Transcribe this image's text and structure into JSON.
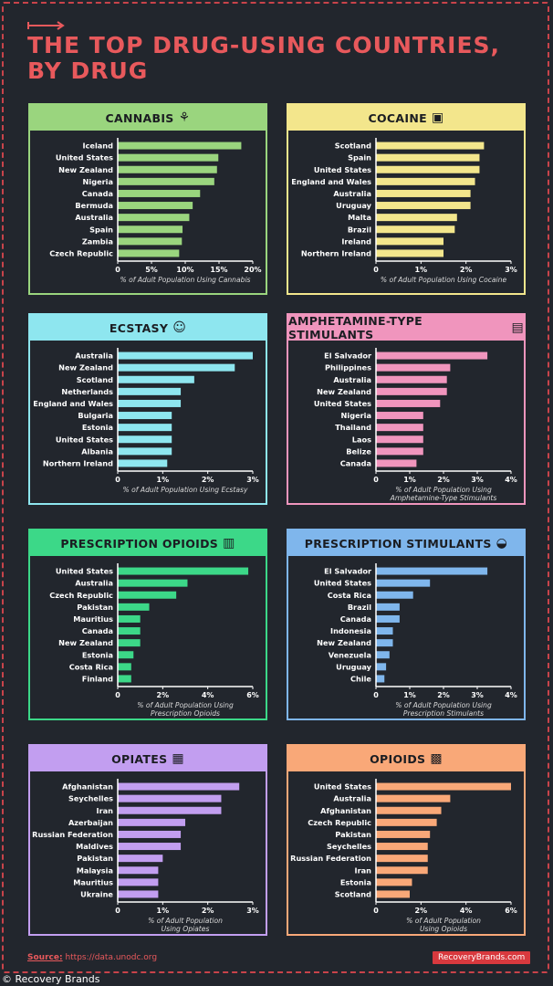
{
  "title_line1": "THE TOP DRUG-USING COUNTRIES,",
  "title_line2": "BY DRUG",
  "source_label": "Source:",
  "source_url": "https://data.unodc.org",
  "brand": "RecoveryBrands.com",
  "watermark": "© Recovery Brands",
  "chart_data": [
    {
      "type": "bar",
      "title": "CANNABIS",
      "icon": "cannabis-leaf-icon",
      "color": "#9ad57e",
      "categories": [
        "Iceland",
        "United States",
        "New Zealand",
        "Nigeria",
        "Canada",
        "Bermuda",
        "Australia",
        "Spain",
        "Zambia",
        "Czech Republic"
      ],
      "values": [
        18.3,
        14.9,
        14.7,
        14.3,
        12.2,
        11.1,
        10.6,
        9.6,
        9.5,
        9.1
      ],
      "xlim": [
        0,
        20
      ],
      "ticks": [
        "0",
        "5%",
        "10%",
        "15%",
        "20%"
      ],
      "tick_values": [
        0,
        5,
        10,
        15,
        20
      ],
      "xlabel": [
        "% of Adult Population Using Cannabis"
      ]
    },
    {
      "type": "bar",
      "title": "COCAINE",
      "icon": "cocaine-icon",
      "color": "#f3e68c",
      "categories": [
        "Scotland",
        "Spain",
        "United States",
        "England and Wales",
        "Australia",
        "Uruguay",
        "Malta",
        "Brazil",
        "Ireland",
        "Northern Ireland"
      ],
      "values": [
        2.4,
        2.3,
        2.3,
        2.2,
        2.1,
        2.1,
        1.8,
        1.75,
        1.5,
        1.5
      ],
      "xlim": [
        0,
        3
      ],
      "ticks": [
        "0",
        "1%",
        "2%",
        "3%"
      ],
      "tick_values": [
        0,
        1,
        2,
        3
      ],
      "xlabel": [
        "% of Adult Population Using Cocaine"
      ]
    },
    {
      "type": "bar",
      "title": "ECSTASY",
      "icon": "smiley-icon",
      "color": "#8ee6ef",
      "categories": [
        "Australia",
        "New Zealand",
        "Scotland",
        "Netherlands",
        "England and Wales",
        "Bulgaria",
        "Estonia",
        "United States",
        "Albania",
        "Northern Ireland"
      ],
      "values": [
        3.0,
        2.6,
        1.7,
        1.4,
        1.4,
        1.2,
        1.2,
        1.2,
        1.2,
        1.1
      ],
      "xlim": [
        0,
        3
      ],
      "ticks": [
        "0",
        "1%",
        "2%",
        "3%"
      ],
      "tick_values": [
        0,
        1,
        2,
        3
      ],
      "xlabel": [
        "% of Adult Population Using Ecstasy"
      ]
    },
    {
      "type": "bar",
      "title": "AMPHETAMINE-TYPE STIMULANTS",
      "icon": "pills-box-icon",
      "color": "#f095bd",
      "categories": [
        "El Salvador",
        "Philippines",
        "Australia",
        "New Zealand",
        "United States",
        "Nigeria",
        "Thailand",
        "Laos",
        "Belize",
        "Canada"
      ],
      "values": [
        3.3,
        2.2,
        2.1,
        2.1,
        1.9,
        1.4,
        1.4,
        1.4,
        1.4,
        1.2
      ],
      "xlim": [
        0,
        4
      ],
      "ticks": [
        "0",
        "1%",
        "2%",
        "3%",
        "4%"
      ],
      "tick_values": [
        0,
        1,
        2,
        3,
        4
      ],
      "xlabel": [
        "% of Adult Population Using",
        "Amphetamine-Type Stimulants"
      ]
    },
    {
      "type": "bar",
      "title": "PRESCRIPTION OPIOIDS",
      "icon": "pill-bottle-icon",
      "color": "#3cd888",
      "categories": [
        "United States",
        "Australia",
        "Czech Republic",
        "Pakistan",
        "Mauritius",
        "Canada",
        "New Zealand",
        "Estonia",
        "Costa Rica",
        "Finland"
      ],
      "values": [
        5.8,
        3.1,
        2.6,
        1.4,
        1.0,
        1.0,
        1.0,
        0.7,
        0.6,
        0.6
      ],
      "xlim": [
        0,
        6
      ],
      "ticks": [
        "0",
        "2%",
        "4%",
        "6%"
      ],
      "tick_values": [
        0,
        2,
        4,
        6
      ],
      "xlabel": [
        "% of Adult Population Using",
        "Prescription Opioids"
      ]
    },
    {
      "type": "bar",
      "title": "PRESCRIPTION STIMULANTS",
      "icon": "capsule-icon",
      "color": "#7fb6ec",
      "categories": [
        "El Salvador",
        "United States",
        "Costa Rica",
        "Brazil",
        "Canada",
        "Indonesia",
        "New Zealand",
        "Venezuela",
        "Uruguay",
        "Chile"
      ],
      "values": [
        3.3,
        1.6,
        1.1,
        0.7,
        0.7,
        0.5,
        0.5,
        0.4,
        0.3,
        0.25
      ],
      "xlim": [
        0,
        4
      ],
      "ticks": [
        "0",
        "1%",
        "2%",
        "3%",
        "4%"
      ],
      "tick_values": [
        0,
        1,
        2,
        3,
        4
      ],
      "xlabel": [
        "% of Adult Population Using",
        "Prescription Stimulants"
      ]
    },
    {
      "type": "bar",
      "title": "OPIATES",
      "icon": "syringe-box-icon",
      "color": "#c29ef0",
      "categories": [
        "Afghanistan",
        "Seychelles",
        "Iran",
        "Azerbaijan",
        "Russian Federation",
        "Maldives",
        "Pakistan",
        "Malaysia",
        "Mauritius",
        "Ukraine"
      ],
      "values": [
        2.7,
        2.3,
        2.3,
        1.5,
        1.4,
        1.4,
        1.0,
        0.9,
        0.9,
        0.9
      ],
      "xlim": [
        0,
        3
      ],
      "ticks": [
        "0",
        "1%",
        "2%",
        "3%"
      ],
      "tick_values": [
        0,
        1,
        2,
        3
      ],
      "xlabel": [
        "% of Adult Population",
        "Using Opiates"
      ]
    },
    {
      "type": "bar",
      "title": "OPIOIDS",
      "icon": "pills-tray-icon",
      "color": "#f9a878",
      "categories": [
        "United States",
        "Australia",
        "Afghanistan",
        "Czech Republic",
        "Pakistan",
        "Seychelles",
        "Russian Federation",
        "Iran",
        "Estonia",
        "Scotland"
      ],
      "values": [
        6.0,
        3.3,
        2.9,
        2.7,
        2.4,
        2.3,
        2.3,
        2.3,
        1.6,
        1.5
      ],
      "xlim": [
        0,
        6
      ],
      "ticks": [
        "0",
        "2%",
        "4%",
        "6%"
      ],
      "tick_values": [
        0,
        2,
        4,
        6
      ],
      "xlabel": [
        "% of Adult Population",
        "Using Opioids"
      ]
    }
  ]
}
